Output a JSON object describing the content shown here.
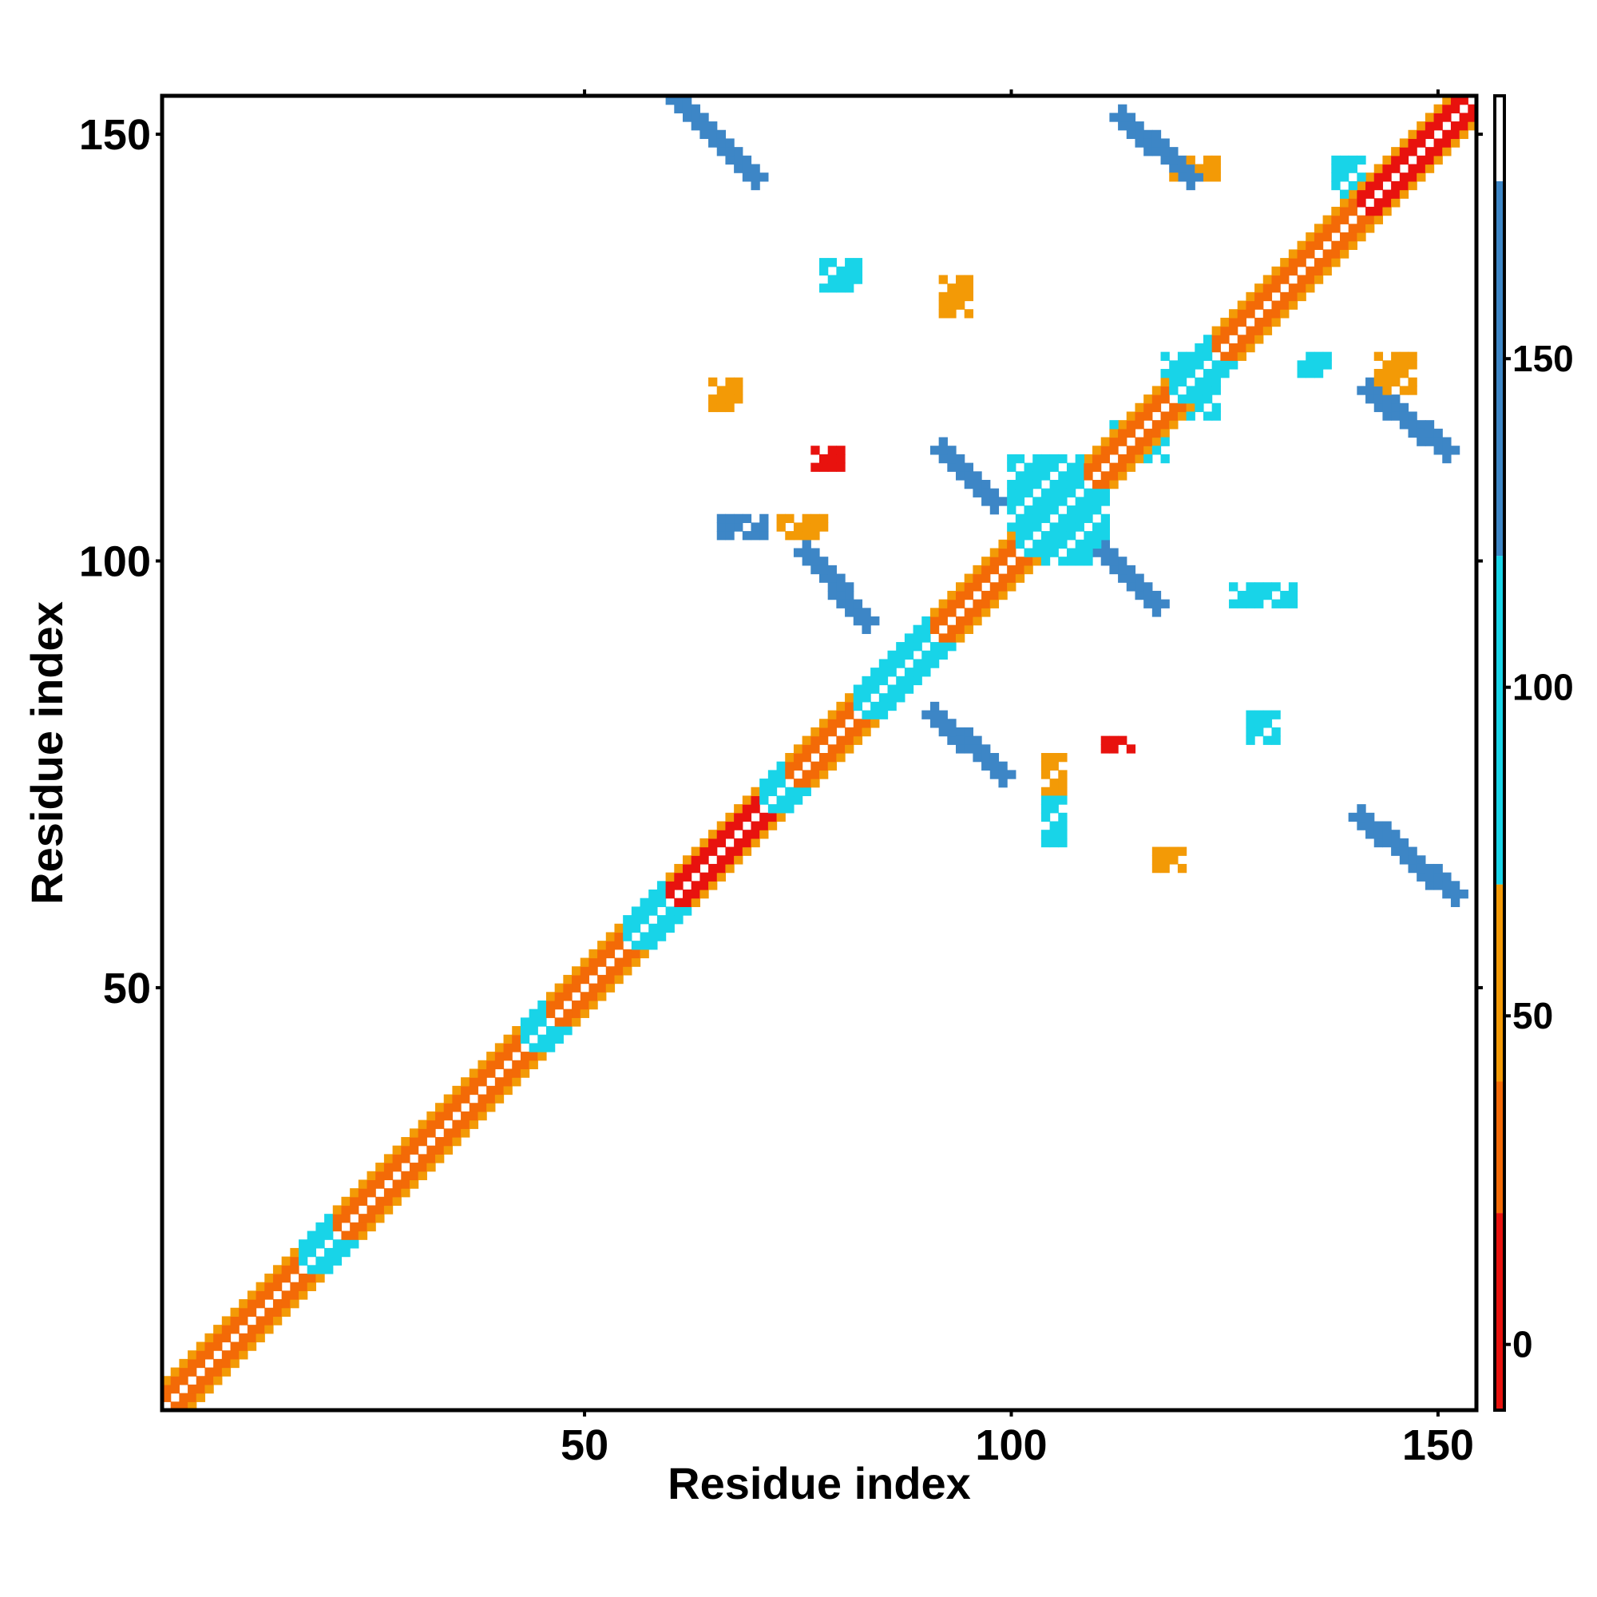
{
  "chart_data": {
    "type": "heatmap",
    "title": "",
    "xlabel": "Residue index",
    "ylabel": "Residue index",
    "xlim": [
      0.5,
      154.5
    ],
    "ylim": [
      0.5,
      154.5
    ],
    "x_ticks": [
      50,
      100,
      150
    ],
    "y_ticks": [
      50,
      100,
      150
    ],
    "grid": false,
    "colorbar": {
      "ticks": [
        0,
        50,
        100,
        150
      ],
      "range": [
        -10,
        190
      ],
      "bands": [
        {
          "from": -10,
          "to": 20,
          "color": "#e8120e"
        },
        {
          "from": 20,
          "to": 40,
          "color": "#f36a07"
        },
        {
          "from": 40,
          "to": 70,
          "color": "#f39a06"
        },
        {
          "from": 70,
          "to": 120,
          "color": "#18d4e8"
        },
        {
          "from": 120,
          "to": 177,
          "color": "#3d86c6"
        },
        {
          "from": 177,
          "to": 190,
          "color": "#ffffff"
        }
      ]
    },
    "value_colors": {
      "red": "#e8120e",
      "orange": "#f36a07",
      "amber": "#f39a06",
      "cyan": "#18d4e8",
      "blue": "#3d86c6"
    },
    "diagonal_band": {
      "segments": [
        {
          "from": 1,
          "to": 16,
          "value": 30
        },
        {
          "from": 17,
          "to": 20,
          "value": 100
        },
        {
          "from": 21,
          "to": 42,
          "value": 35
        },
        {
          "from": 43,
          "to": 45,
          "value": 100
        },
        {
          "from": 46,
          "to": 54,
          "value": 35
        },
        {
          "from": 55,
          "to": 59,
          "value": 100
        },
        {
          "from": 60,
          "to": 70,
          "value": 10
        },
        {
          "from": 71,
          "to": 73,
          "value": 100
        },
        {
          "from": 74,
          "to": 81,
          "value": 30
        },
        {
          "from": 82,
          "to": 90,
          "value": 100
        },
        {
          "from": 91,
          "to": 100,
          "value": 30
        },
        {
          "from": 101,
          "to": 108,
          "value": 100
        },
        {
          "from": 109,
          "to": 118,
          "value": 30
        },
        {
          "from": 119,
          "to": 123,
          "value": 100
        },
        {
          "from": 124,
          "to": 140,
          "value": 30
        },
        {
          "from": 141,
          "to": 154,
          "value": 10
        }
      ]
    },
    "contact_blocks": [
      {
        "x": [
          60,
          70
        ],
        "y": [
          145,
          155
        ],
        "value": 140,
        "anti": true
      },
      {
        "x": [
          113,
          121
        ],
        "y": [
          145,
          152
        ],
        "value": 140,
        "anti": true
      },
      {
        "x": [
          119,
          124
        ],
        "y": [
          145,
          147
        ],
        "value": 60
      },
      {
        "x": [
          92,
          98
        ],
        "y": [
          107,
          113
        ],
        "value": 140,
        "anti": true
      },
      {
        "x": [
          76,
          83
        ],
        "y": [
          93,
          101
        ],
        "value": 140,
        "anti": true
      },
      {
        "x": [
          91,
          99
        ],
        "y": [
          75,
          82
        ],
        "value": 140,
        "anti": true
      },
      {
        "x": [
          141,
          152
        ],
        "y": [
          61,
          70
        ],
        "value": 140,
        "anti": true
      },
      {
        "x": [
          142,
          151
        ],
        "y": [
          113,
          120
        ],
        "value": 140,
        "anti": true
      },
      {
        "x": [
          143,
          147
        ],
        "y": [
          120,
          124
        ],
        "value": 55
      },
      {
        "x": [
          111,
          117
        ],
        "y": [
          95,
          101
        ],
        "value": 140,
        "anti": true
      },
      {
        "x": [
          100,
          111
        ],
        "y": [
          100,
          112
        ],
        "value": 100
      },
      {
        "x": [
          118,
          124
        ],
        "y": [
          117,
          124
        ],
        "value": 100
      },
      {
        "x": [
          112,
          118
        ],
        "y": [
          112,
          116
        ],
        "value": 100
      },
      {
        "x": [
          73,
          78
        ],
        "y": [
          103,
          105
        ],
        "value": 45
      },
      {
        "x": [
          66,
          71
        ],
        "y": [
          103,
          105
        ],
        "value": 140
      },
      {
        "x": [
          78,
          82
        ],
        "y": [
          132,
          135
        ],
        "value": 100
      },
      {
        "x": [
          92,
          95
        ],
        "y": [
          129,
          133
        ],
        "value": 40
      },
      {
        "x": [
          104,
          106
        ],
        "y": [
          73,
          77
        ],
        "value": 60
      },
      {
        "x": [
          104,
          106
        ],
        "y": [
          67,
          72
        ],
        "value": 100
      },
      {
        "x": [
          111,
          114
        ],
        "y": [
          78,
          79
        ],
        "value": 15
      },
      {
        "x": [
          128,
          131
        ],
        "y": [
          79,
          82
        ],
        "value": 100
      },
      {
        "x": [
          65,
          68
        ],
        "y": [
          118,
          121
        ],
        "value": 45
      },
      {
        "x": [
          77,
          80
        ],
        "y": [
          111,
          113
        ],
        "value": 10
      },
      {
        "x": [
          126,
          133
        ],
        "y": [
          95,
          97
        ],
        "value": 100
      },
      {
        "x": [
          117,
          120
        ],
        "y": [
          64,
          66
        ],
        "value": 50
      },
      {
        "x": [
          134,
          137
        ],
        "y": [
          122,
          124
        ],
        "value": 100
      },
      {
        "x": [
          138,
          141
        ],
        "y": [
          143,
          147
        ],
        "value": 100
      }
    ]
  }
}
